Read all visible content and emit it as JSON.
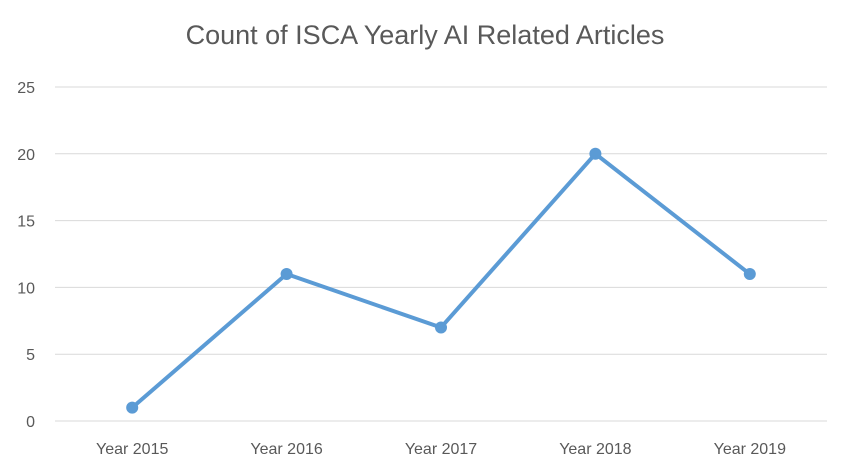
{
  "chart_data": {
    "type": "line",
    "title": "Count of ISCA Yearly AI Related Articles",
    "categories": [
      "Year 2015",
      "Year 2016",
      "Year 2017",
      "Year 2018",
      "Year 2019"
    ],
    "series": [
      {
        "values": [
          1,
          11,
          7,
          20,
          11
        ]
      }
    ],
    "xlabel": "",
    "ylabel": "",
    "ylim": [
      0,
      25
    ],
    "yticks": [
      "0",
      "5",
      "10",
      "15",
      "20",
      "25"
    ],
    "grid": true,
    "legend": "none",
    "colors": {
      "line": "#5B9BD5",
      "grid": "#D9D9D9",
      "text": "#595959"
    }
  }
}
